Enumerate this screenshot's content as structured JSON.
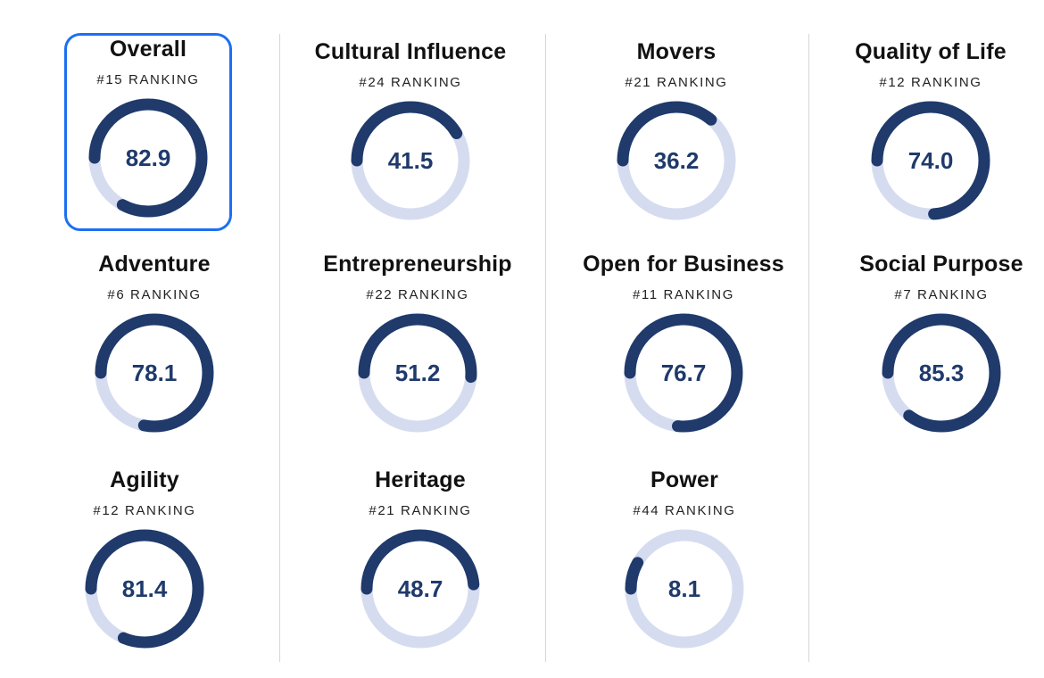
{
  "ranking_label": "RANKING",
  "colors": {
    "track": "#d6dcf0",
    "fill": "#1f3a6b",
    "score_text": "#1f3a6b",
    "selected_border": "#1d6ff2"
  },
  "cards": [
    {
      "key": "overall",
      "title": "Overall",
      "rank": "#15 RANKING",
      "score": "82.9",
      "progress": 0.829,
      "selected": true
    },
    {
      "key": "cultural",
      "title": "Cultural Influence",
      "rank": "#24 RANKING",
      "score": "41.5",
      "progress": 0.415
    },
    {
      "key": "movers",
      "title": "Movers",
      "rank": "#21 RANKING",
      "score": "36.2",
      "progress": 0.362
    },
    {
      "key": "quality",
      "title": "Quality of Life",
      "rank": "#12 RANKING",
      "score": "74.0",
      "progress": 0.74
    },
    {
      "key": "adventure",
      "title": "Adventure",
      "rank": "#6 RANKING",
      "score": "78.1",
      "progress": 0.781
    },
    {
      "key": "entrepreneurship",
      "title": "Entrepreneurship",
      "rank": "#22 RANKING",
      "score": "51.2",
      "progress": 0.512
    },
    {
      "key": "open-business",
      "title": "Open for Business",
      "rank": "#11 RANKING",
      "score": "76.7",
      "progress": 0.767
    },
    {
      "key": "social-purpose",
      "title": "Social Purpose",
      "rank": "#7 RANKING",
      "score": "85.3",
      "progress": 0.853
    },
    {
      "key": "agility",
      "title": "Agility",
      "rank": "#12 RANKING",
      "score": "81.4",
      "progress": 0.814
    },
    {
      "key": "heritage",
      "title": "Heritage",
      "rank": "#21 RANKING",
      "score": "48.7",
      "progress": 0.487
    },
    {
      "key": "power",
      "title": "Power",
      "rank": "#44 RANKING",
      "score": "8.1",
      "progress": 0.081
    }
  ]
}
